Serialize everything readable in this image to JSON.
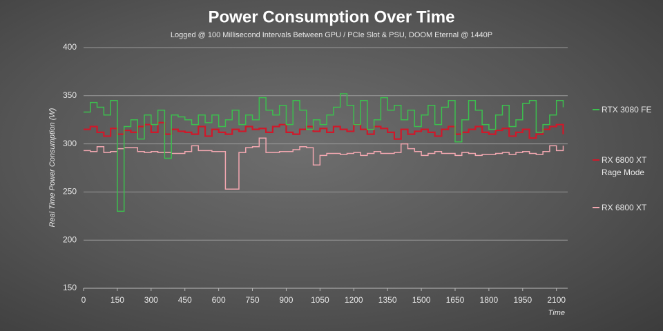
{
  "chart_data": {
    "type": "line",
    "step": true,
    "title": "Power Consumption Over Time",
    "subtitle": "Logged @ 100 Millisecond Intervals Between GPU / PCIe Slot & PSU, DOOM Eternal @ 1440P",
    "y_label": "Real Time Power Consumption (W)",
    "x_label": "Time",
    "xlim": [
      0,
      2150
    ],
    "xticks": [
      0,
      150,
      300,
      450,
      600,
      750,
      900,
      1050,
      1200,
      1350,
      1500,
      1650,
      1800,
      1950,
      2100
    ],
    "ylim": [
      150,
      400
    ],
    "yticks": [
      150,
      200,
      250,
      300,
      350,
      400
    ],
    "grid": true,
    "legend": "right",
    "x": [
      0,
      30,
      60,
      90,
      120,
      150,
      180,
      210,
      240,
      270,
      300,
      330,
      360,
      390,
      420,
      450,
      480,
      510,
      540,
      570,
      600,
      630,
      660,
      690,
      720,
      750,
      780,
      810,
      840,
      870,
      900,
      930,
      960,
      990,
      1020,
      1050,
      1080,
      1110,
      1140,
      1170,
      1200,
      1230,
      1260,
      1290,
      1320,
      1350,
      1380,
      1410,
      1440,
      1470,
      1500,
      1530,
      1560,
      1590,
      1620,
      1650,
      1680,
      1710,
      1740,
      1770,
      1800,
      1830,
      1860,
      1890,
      1920,
      1950,
      1980,
      2010,
      2040,
      2070,
      2100,
      2130
    ],
    "series": [
      {
        "name": "RTX 3080 FE",
        "color": "#3cbf4e",
        "values": [
          333,
          343,
          338,
          330,
          345,
          230,
          318,
          325,
          305,
          330,
          320,
          335,
          285,
          330,
          328,
          325,
          320,
          330,
          322,
          330,
          318,
          325,
          335,
          320,
          330,
          325,
          348,
          335,
          330,
          340,
          320,
          345,
          335,
          315,
          325,
          320,
          330,
          338,
          352,
          340,
          320,
          345,
          315,
          325,
          348,
          335,
          340,
          325,
          335,
          318,
          330,
          340,
          320,
          338,
          345,
          302,
          325,
          345,
          335,
          320,
          315,
          330,
          340,
          318,
          325,
          342,
          345,
          312,
          320,
          330,
          345,
          338
        ]
      },
      {
        "name": "RX 6800 XT Rage Mode",
        "color": "#d0182a",
        "values": [
          315,
          318,
          312,
          308,
          316,
          310,
          314,
          312,
          318,
          320,
          312,
          322,
          310,
          315,
          313,
          312,
          310,
          318,
          308,
          315,
          312,
          310,
          315,
          313,
          318,
          315,
          316,
          312,
          318,
          320,
          312,
          310,
          315,
          318,
          313,
          316,
          312,
          318,
          315,
          313,
          320,
          315,
          310,
          318,
          316,
          312,
          305,
          315,
          310,
          313,
          315,
          312,
          308,
          315,
          318,
          310,
          312,
          315,
          318,
          312,
          310,
          314,
          316,
          308,
          312,
          315,
          306,
          310,
          315,
          318,
          320,
          310
        ]
      },
      {
        "name": "RX 6800 XT",
        "color": "#f2a7b0",
        "values": [
          293,
          292,
          297,
          291,
          292,
          295,
          296,
          296,
          292,
          291,
          292,
          291,
          291,
          290,
          290,
          292,
          298,
          293,
          293,
          292,
          292,
          253,
          253,
          291,
          296,
          297,
          306,
          291,
          291,
          292,
          292,
          294,
          297,
          296,
          278,
          288,
          290,
          290,
          289,
          290,
          291,
          288,
          290,
          292,
          290,
          290,
          291,
          300,
          295,
          292,
          288,
          290,
          292,
          290,
          290,
          288,
          291,
          290,
          288,
          289,
          289,
          290,
          291,
          289,
          291,
          292,
          290,
          289,
          292,
          298,
          293,
          298
        ]
      }
    ]
  }
}
